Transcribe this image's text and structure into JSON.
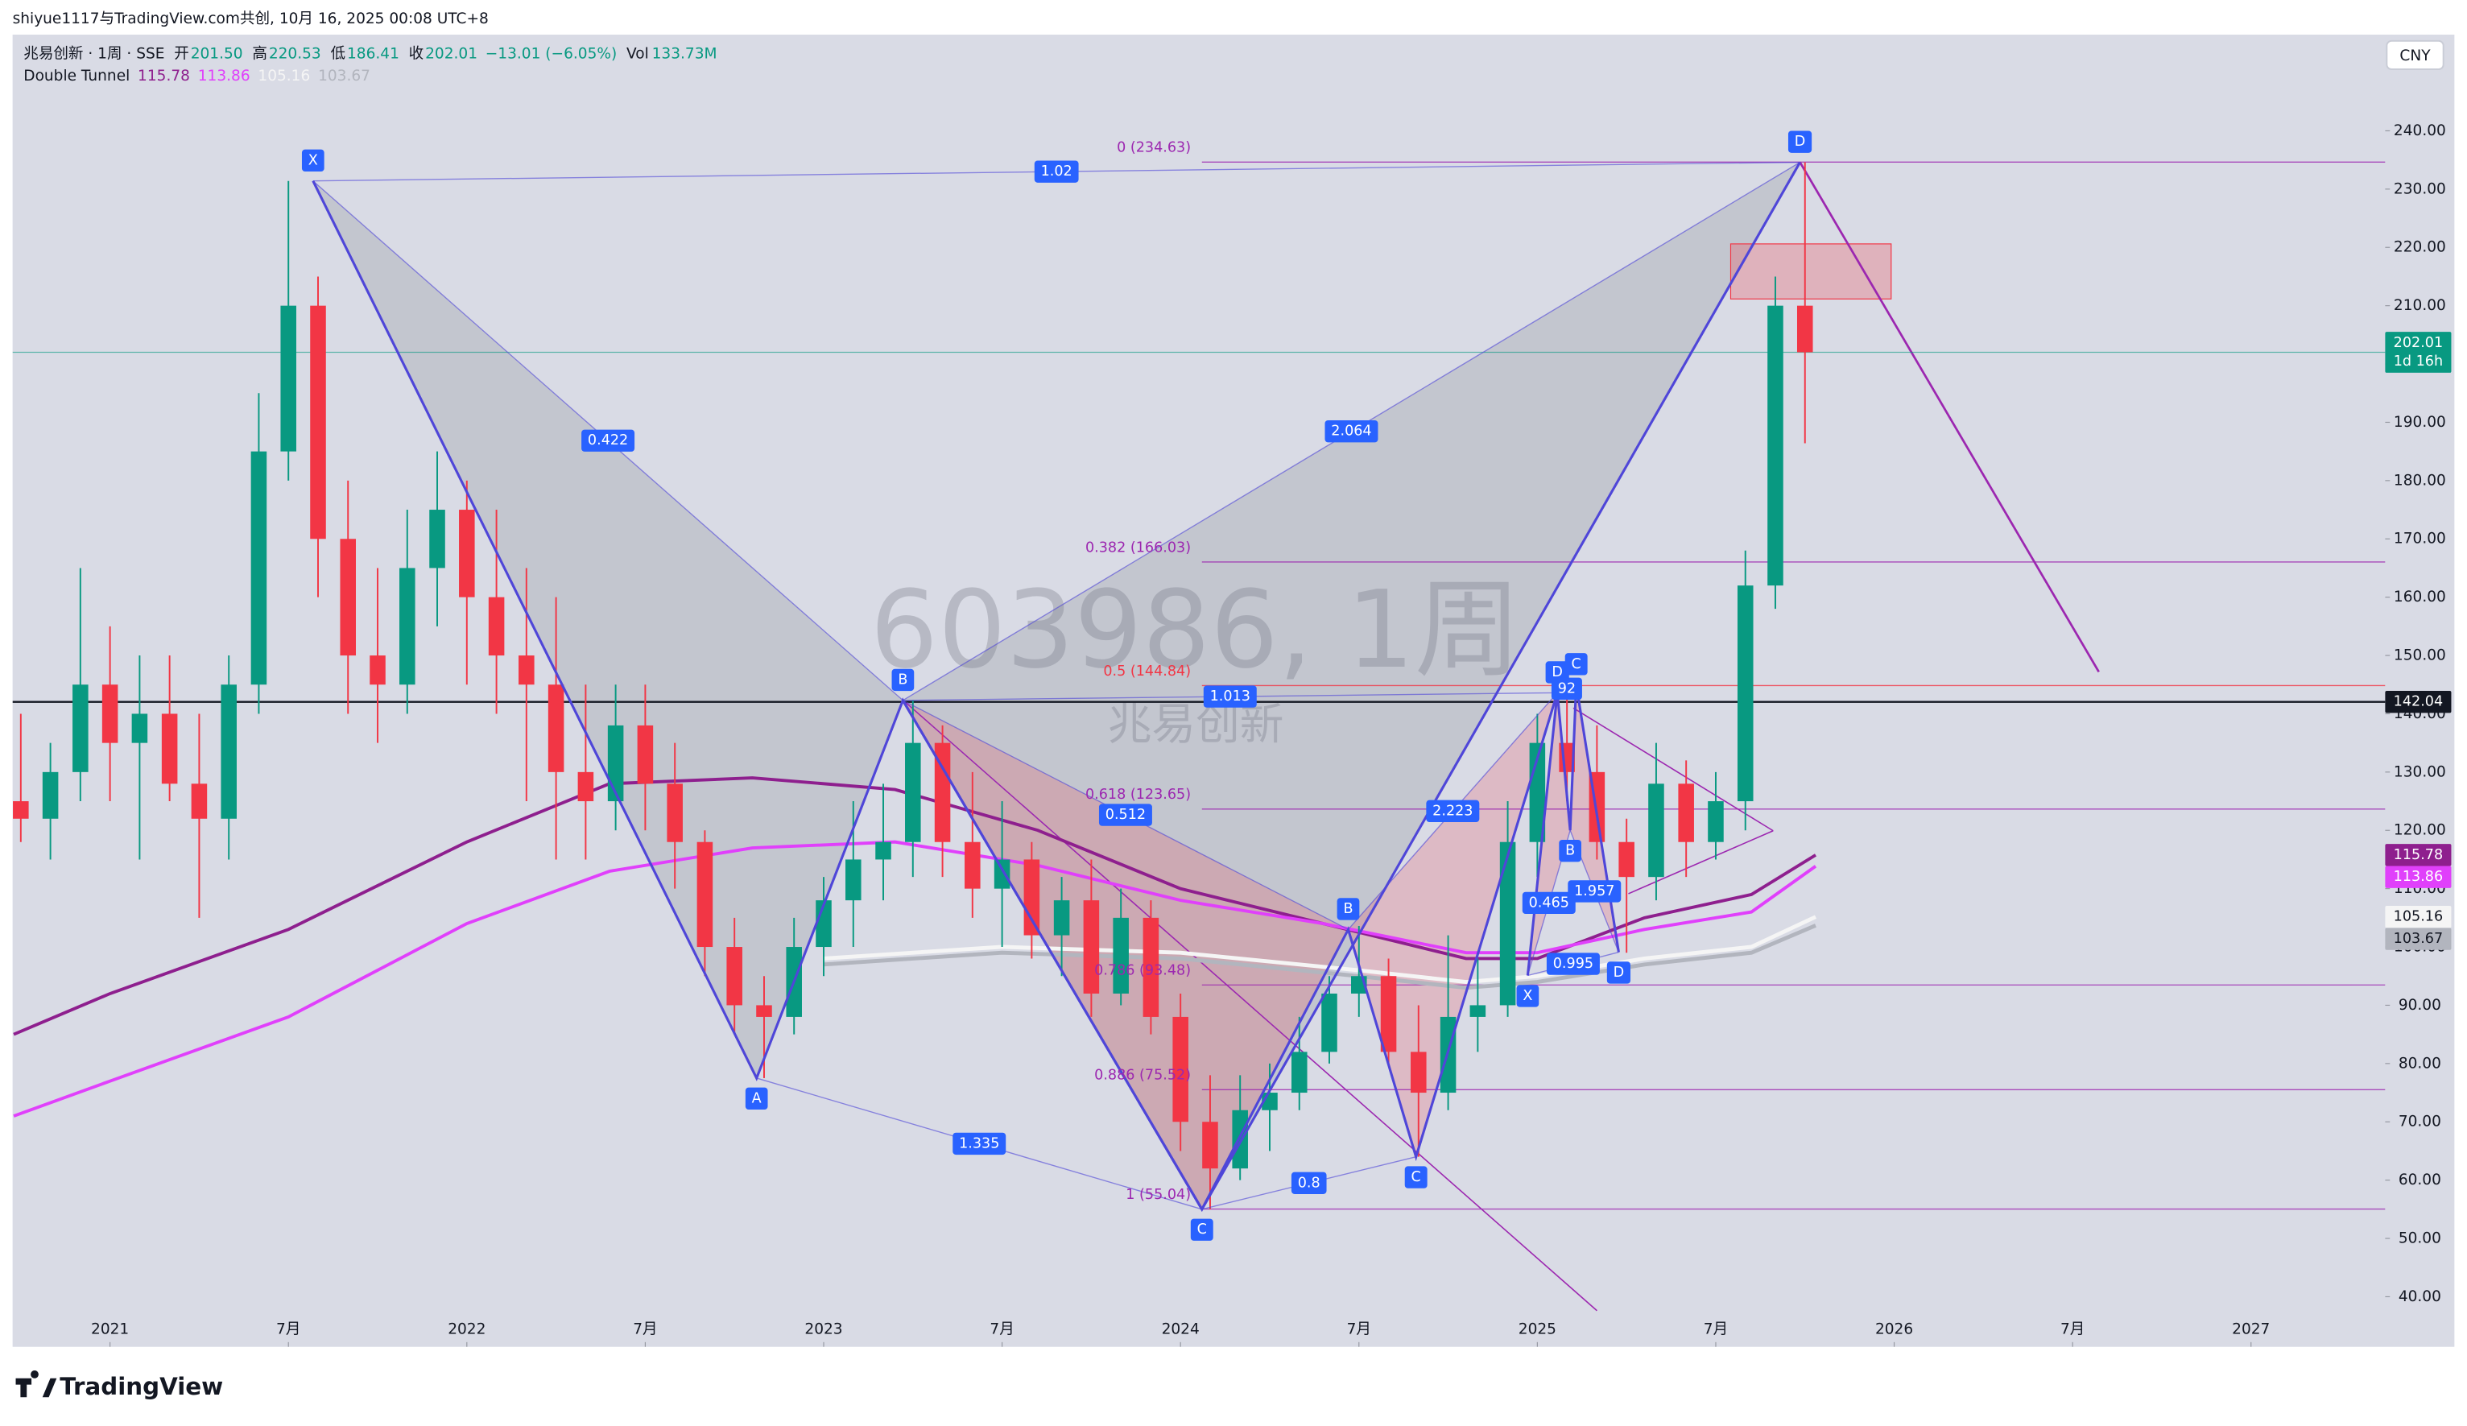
{
  "header": {
    "attribution": "shiyue1117与TradingView.com共创, 10月 16, 2025 00:08 UTC+8",
    "symbol": "兆易创新 · 1周 · SSE",
    "ohlc": [
      {
        "label": "开",
        "value": "201.50"
      },
      {
        "label": "高",
        "value": "220.53"
      },
      {
        "label": "低",
        "value": "186.41"
      },
      {
        "label": "收",
        "value": "202.01"
      }
    ],
    "change": "−13.01 (−6.05%)",
    "volume_label": "Vol",
    "volume": "133.73M",
    "currency": "CNY"
  },
  "chart_data": {
    "type": "candlestick",
    "watermark": "603986, 1周",
    "watermark_name": "兆易创新",
    "up_color": "#089981",
    "down_color": "#f23645",
    "x": [
      2020.75,
      2020.833,
      2020.917,
      2021,
      2021.083,
      2021.167,
      2021.25,
      2021.333,
      2021.417,
      2021.5,
      2021.583,
      2021.667,
      2021.75,
      2021.833,
      2021.917,
      2022,
      2022.083,
      2022.167,
      2022.25,
      2022.333,
      2022.417,
      2022.5,
      2022.583,
      2022.667,
      2022.75,
      2022.833,
      2022.917,
      2023,
      2023.083,
      2023.167,
      2023.25,
      2023.333,
      2023.417,
      2023.5,
      2023.583,
      2023.667,
      2023.75,
      2023.833,
      2023.917,
      2024,
      2024.083,
      2024.167,
      2024.25,
      2024.333,
      2024.417,
      2024.5,
      2024.583,
      2024.667,
      2024.75,
      2024.833,
      2024.917,
      2025,
      2025.083,
      2025.167,
      2025.25,
      2025.333,
      2025.417,
      2025.5,
      2025.583,
      2025.667,
      2025.75
    ],
    "open": [
      125,
      122,
      130,
      145,
      135,
      140,
      128,
      122,
      145,
      185,
      210,
      170,
      150,
      145,
      165,
      175,
      160,
      150,
      145,
      130,
      125,
      138,
      128,
      118,
      100,
      90,
      88,
      100,
      108,
      115,
      118,
      135,
      118,
      110,
      115,
      102,
      108,
      92,
      105,
      88,
      70,
      62,
      72,
      75,
      82,
      92,
      95,
      82,
      75,
      88,
      90,
      118,
      135,
      130,
      118,
      112,
      128,
      118,
      125,
      162,
      210
    ],
    "high": [
      140,
      135,
      165,
      155,
      150,
      150,
      140,
      150,
      195,
      231.4,
      215,
      180,
      165,
      175,
      185,
      180,
      175,
      165,
      160,
      145,
      145,
      145,
      135,
      120,
      105,
      95,
      105,
      112,
      125,
      128,
      142.3,
      138,
      130,
      125,
      118,
      112,
      115,
      110,
      108,
      92,
      78,
      78,
      80,
      88,
      95,
      103.6,
      98,
      90,
      102,
      98,
      125,
      140,
      145,
      138,
      122,
      135,
      132,
      130,
      168,
      215,
      234.6
    ],
    "low": [
      118,
      115,
      125,
      125,
      115,
      125,
      105,
      115,
      140,
      180,
      160,
      140,
      135,
      140,
      155,
      145,
      140,
      125,
      115,
      115,
      120,
      120,
      110,
      95,
      85,
      77.5,
      85,
      95,
      100,
      108,
      112,
      112,
      105,
      100,
      98,
      95,
      88,
      90,
      85,
      65,
      55,
      60,
      65,
      72,
      80,
      88,
      80,
      64,
      72,
      82,
      88,
      112,
      125,
      115,
      99,
      108,
      112,
      115,
      120,
      158,
      186.41
    ],
    "close": [
      122,
      130,
      145,
      135,
      140,
      128,
      122,
      145,
      185,
      210,
      170,
      150,
      145,
      165,
      175,
      160,
      150,
      145,
      130,
      125,
      138,
      128,
      118,
      100,
      90,
      88,
      100,
      108,
      115,
      118,
      135,
      118,
      110,
      115,
      102,
      108,
      92,
      105,
      88,
      70,
      62,
      72,
      75,
      82,
      92,
      95,
      82,
      75,
      88,
      90,
      118,
      135,
      130,
      118,
      112,
      128,
      118,
      125,
      162,
      210,
      202.01
    ],
    "xlim": [
      2020.727,
      2027.376
    ],
    "ylim": [
      31.4,
      256.5
    ],
    "xticks": [
      2021,
      {
        "value": 2021.5,
        "label": "7月"
      },
      2022,
      {
        "value": 2022.5,
        "label": "7月"
      },
      2023,
      {
        "value": 2023.5,
        "label": "7月"
      },
      2024,
      {
        "value": 2024.5,
        "label": "7月"
      },
      2025,
      {
        "value": 2025.5,
        "label": "7月"
      },
      2026,
      {
        "value": 2026.5,
        "label": "7月"
      },
      2027
    ],
    "yticks": [
      {
        "value": 40,
        "label": "40.00"
      },
      {
        "value": 50,
        "label": "50.00"
      },
      {
        "value": 60,
        "label": "60.00"
      },
      {
        "value": 70,
        "label": "70.00"
      },
      {
        "value": 80,
        "label": "80.00"
      },
      {
        "value": 90,
        "label": "90.00"
      },
      {
        "value": 100,
        "label": "100.00"
      },
      {
        "value": 110,
        "label": "110.00"
      },
      {
        "value": 120,
        "label": "120.00"
      },
      {
        "value": 130,
        "label": "130.00"
      },
      {
        "value": 140,
        "label": "140.00"
      },
      {
        "value": 150,
        "label": "150.00"
      },
      {
        "value": 160,
        "label": "160.00"
      },
      {
        "value": 170,
        "label": "170.00"
      },
      {
        "value": 180,
        "label": "180.00"
      },
      {
        "value": 190,
        "label": "190.00"
      },
      {
        "value": 200,
        "label": "200.00"
      },
      {
        "value": 210,
        "label": "210.00"
      },
      {
        "value": 220,
        "label": "220.00"
      },
      {
        "value": 230,
        "label": "230.00"
      },
      {
        "value": 240,
        "label": "240.00"
      }
    ],
    "grid": false,
    "indicator": {
      "name": "Double Tunnel",
      "series": [
        {
          "color": "#8e1f8e",
          "x": [
            2020.73,
            2021,
            2021.5,
            2022,
            2022.4,
            2022.8,
            2023.2,
            2023.6,
            2024,
            2024.4,
            2024.8,
            2025,
            2025.3,
            2025.6,
            2025.78
          ],
          "values": [
            85,
            92,
            103,
            118,
            128,
            129,
            127,
            120,
            110,
            104,
            98,
            98,
            105,
            109,
            115.78
          ]
        },
        {
          "color": "#e040fb",
          "x": [
            2020.73,
            2021,
            2021.5,
            2022,
            2022.4,
            2022.8,
            2023.2,
            2023.6,
            2024,
            2024.4,
            2024.8,
            2025,
            2025.3,
            2025.6,
            2025.78
          ],
          "values": [
            71,
            77,
            88,
            104,
            113,
            117,
            118,
            114,
            108,
            104,
            99,
            99,
            103,
            106,
            113.86
          ]
        },
        {
          "color": "#f5f5f5",
          "x": [
            2023,
            2023.5,
            2024,
            2024.5,
            2024.8,
            2025,
            2025.3,
            2025.6,
            2025.78
          ],
          "values": [
            98,
            100,
            99,
            96,
            94,
            95,
            98,
            100,
            105.16
          ]
        },
        {
          "color": "#b2b5be",
          "x": [
            2023,
            2023.5,
            2024,
            2024.5,
            2024.8,
            2025,
            2025.3,
            2025.6,
            2025.78
          ],
          "values": [
            97,
            99,
            98,
            95,
            93,
            94,
            97,
            99,
            103.67
          ]
        }
      ]
    },
    "patterns": [
      {
        "line_color": "#4f46d8",
        "fill": "rgba(120,123,134,0.22)",
        "points": [
          {
            "label": "X",
            "x": 2021.569,
            "y": 231.4
          },
          {
            "label": "A",
            "x": 2022.812,
            "y": 77.5
          },
          {
            "label": "B",
            "x": 2023.222,
            "y": 142.3
          },
          {
            "label": "C",
            "x": 2024.06,
            "y": 55.0
          },
          {
            "label": "D",
            "x": 2025.736,
            "y": 234.6
          }
        ],
        "ratios": [
          "0.422",
          "1.335",
          "2.064",
          "1.02"
        ]
      },
      {
        "line_color": "#4f46d8",
        "fill": "rgba(242,54,69,0.2)",
        "points": [
          {
            "x": 2023.222,
            "y": 142.3
          },
          {
            "x": 2024.06,
            "y": 55.0
          },
          {
            "label": "B",
            "x": 2024.47,
            "y": 103
          },
          {
            "label": "C",
            "x": 2024.66,
            "y": 64.0
          },
          {
            "label": "D",
            "x": 2025.056,
            "y": 143.6
          }
        ],
        "ratios": [
          "0.512",
          "0.8",
          "2.223",
          "1.013"
        ]
      },
      {
        "line_color": "#4f46d8",
        "fill": "rgba(242,54,69,0.2)",
        "points": [
          {
            "label": "X",
            "x": 2024.973,
            "y": 95.1
          },
          {
            "x": 2025.056,
            "y": 143.6
          },
          {
            "label": "B",
            "x": 2025.092,
            "y": 120.0
          },
          {
            "label": "C",
            "x": 2025.109,
            "y": 145.0
          },
          {
            "label": "D",
            "x": 2025.228,
            "y": 99.1
          }
        ],
        "ratios": [
          "0.465",
          "92",
          "1.957",
          "0.995"
        ]
      }
    ],
    "fib_levels": [
      {
        "label": "0 (234.63)",
        "price": 234.63,
        "color": "#9c27b0"
      },
      {
        "label": "0.382 (166.03)",
        "price": 166.03,
        "color": "#9c27b0"
      },
      {
        "label": "0.5 (144.84)",
        "price": 144.84,
        "color": "#f23645"
      },
      {
        "label": "0.618 (123.65)",
        "price": 123.65,
        "color": "#9c27b0"
      },
      {
        "label": "0.786 (93.48)",
        "price": 93.48,
        "color": "#9c27b0"
      },
      {
        "label": "0.886 (75.52)",
        "price": 75.52,
        "color": "#9c27b0"
      },
      {
        "label": "1 (55.04)",
        "price": 55.04,
        "color": "#9c27b0"
      }
    ],
    "price_lines": [
      {
        "value": 202.01,
        "color": "#089981",
        "countdown": "1d 16h"
      },
      {
        "value": 142.04,
        "color": "#131722"
      }
    ]
  },
  "footer": {
    "brand": "TradingView"
  }
}
